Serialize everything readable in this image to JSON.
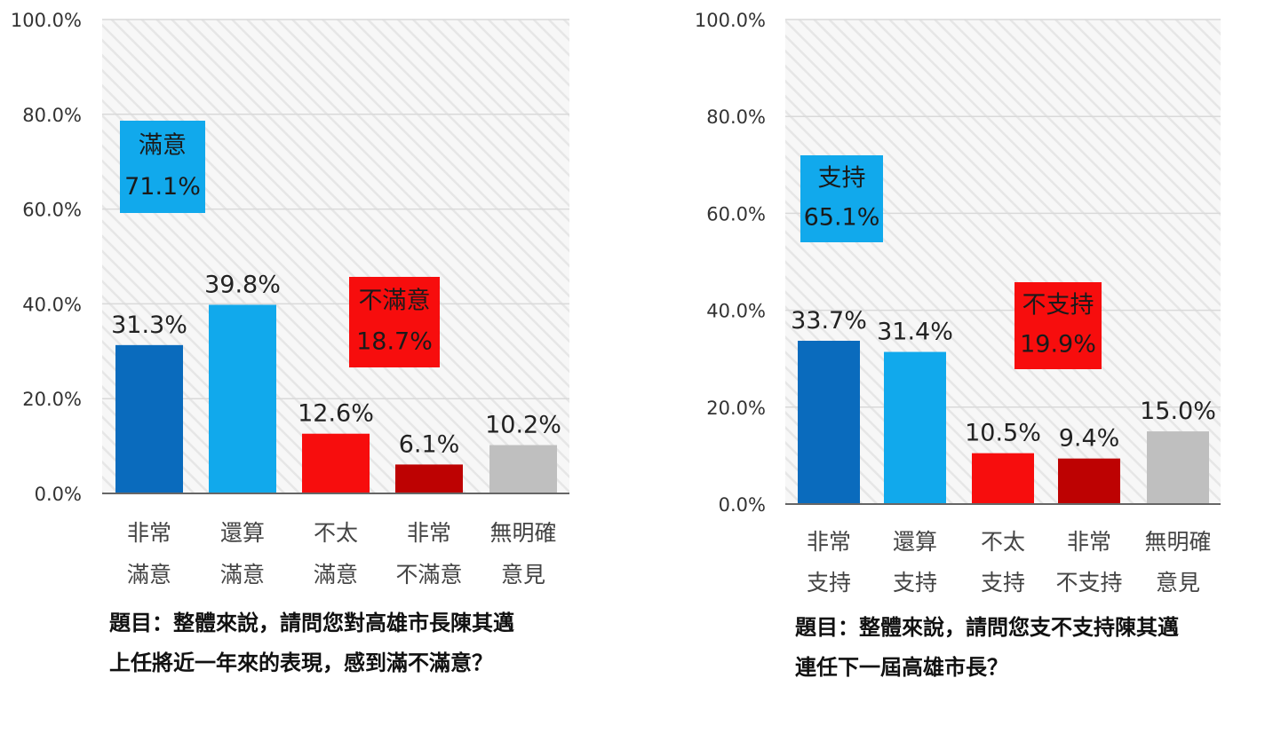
{
  "chart_data": [
    {
      "type": "bar",
      "categories": [
        [
          "非常",
          "滿意"
        ],
        [
          "還算",
          "滿意"
        ],
        [
          "不太",
          "滿意"
        ],
        [
          "非常",
          "不滿意"
        ],
        [
          "無明確",
          "意見"
        ]
      ],
      "values": [
        31.3,
        39.8,
        12.6,
        6.1,
        10.2
      ],
      "value_labels": [
        "31.3%",
        "39.8%",
        "12.6%",
        "6.1%",
        "10.2%"
      ],
      "bar_colors": [
        "#0a6bbd",
        "#11a9ec",
        "#f70d0d",
        "#bd0202",
        "#bfbfbf"
      ],
      "ylim": [
        0,
        100
      ],
      "yticks": [
        "0.0%",
        "20.0%",
        "40.0%",
        "60.0%",
        "80.0%",
        "100.0%"
      ],
      "annotations": [
        {
          "label": "滿意",
          "value": "71.1%",
          "color": "#11a9ec"
        },
        {
          "label": "不滿意",
          "value": "18.7%",
          "color": "#f70d0d"
        }
      ],
      "question": [
        "題目：整體來說，請問您對高雄市長陳其邁",
        "上任將近一年來的表現，感到滿不滿意？"
      ]
    },
    {
      "type": "bar",
      "categories": [
        [
          "非常",
          "支持"
        ],
        [
          "還算",
          "支持"
        ],
        [
          "不太",
          "支持"
        ],
        [
          "非常",
          "不支持"
        ],
        [
          "無明確",
          "意見"
        ]
      ],
      "values": [
        33.7,
        31.4,
        10.5,
        9.4,
        15.0
      ],
      "value_labels": [
        "33.7%",
        "31.4%",
        "10.5%",
        "9.4%",
        "15.0%"
      ],
      "bar_colors": [
        "#0a6bbd",
        "#11a9ec",
        "#f70d0d",
        "#bd0202",
        "#bfbfbf"
      ],
      "ylim": [
        0,
        100
      ],
      "yticks": [
        "0.0%",
        "20.0%",
        "40.0%",
        "60.0%",
        "80.0%",
        "100.0%"
      ],
      "annotations": [
        {
          "label": "支持",
          "value": "65.1%",
          "color": "#11a9ec"
        },
        {
          "label": "不支持",
          "value": "19.9%",
          "color": "#f70d0d"
        }
      ],
      "question": [
        "題目：整體來說，請問您支不支持陳其邁",
        "連任下一屆高雄市長？"
      ]
    }
  ]
}
